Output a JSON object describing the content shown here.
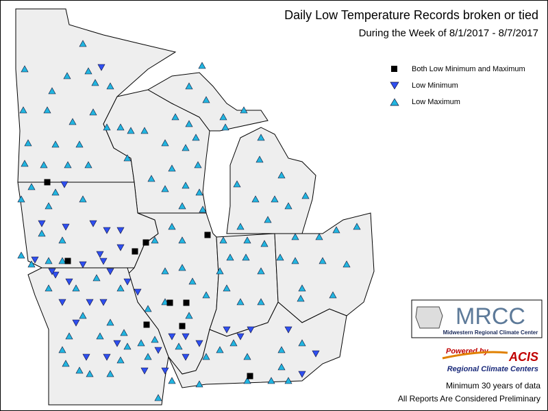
{
  "header": {
    "title": "Daily Low Temperature Records broken or tied",
    "subtitle": "During the Week of 8/1/2017 - 8/7/2017"
  },
  "legend": {
    "items": [
      {
        "label": "Both Low Minimum and Maximum"
      },
      {
        "label": "Low Minimum"
      },
      {
        "label": "Low Maximum"
      }
    ]
  },
  "logo": {
    "name": "MRCC",
    "full_name": "Midwestern Regional Climate Center"
  },
  "acis": {
    "powered": "Powered by",
    "name": "ACIS",
    "tagline": "Regional Climate Centers"
  },
  "footnotes": [
    "Minimum 30 years of data",
    "All Reports Are Considered Preliminary"
  ]
}
